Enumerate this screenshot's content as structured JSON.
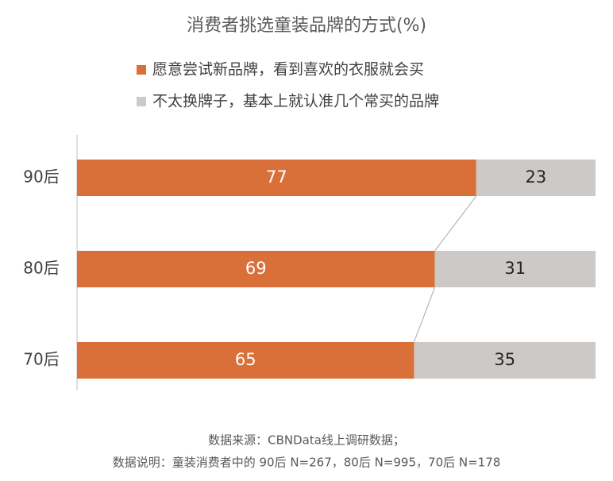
{
  "chart_data": {
    "type": "stacked-bar-horizontal",
    "title": "消费者挑选童装品牌的方式(%)",
    "categories": [
      "90后",
      "80后",
      "70后"
    ],
    "series": [
      {
        "name": "愿意尝试新品牌，看到喜欢的衣服就会买",
        "color": "#d9703a",
        "values": [
          77,
          69,
          65
        ]
      },
      {
        "name": "不太换牌子，基本上就认准几个常买的品牌",
        "color": "#cdc9c7",
        "values": [
          23,
          31,
          35
        ]
      }
    ],
    "xlim": [
      0,
      100
    ],
    "notes": [
      "数据来源：CBNData线上调研数据；",
      "数据说明：童装消费者中的 90后 N=267，80后 N=995，70后 N=178"
    ]
  }
}
